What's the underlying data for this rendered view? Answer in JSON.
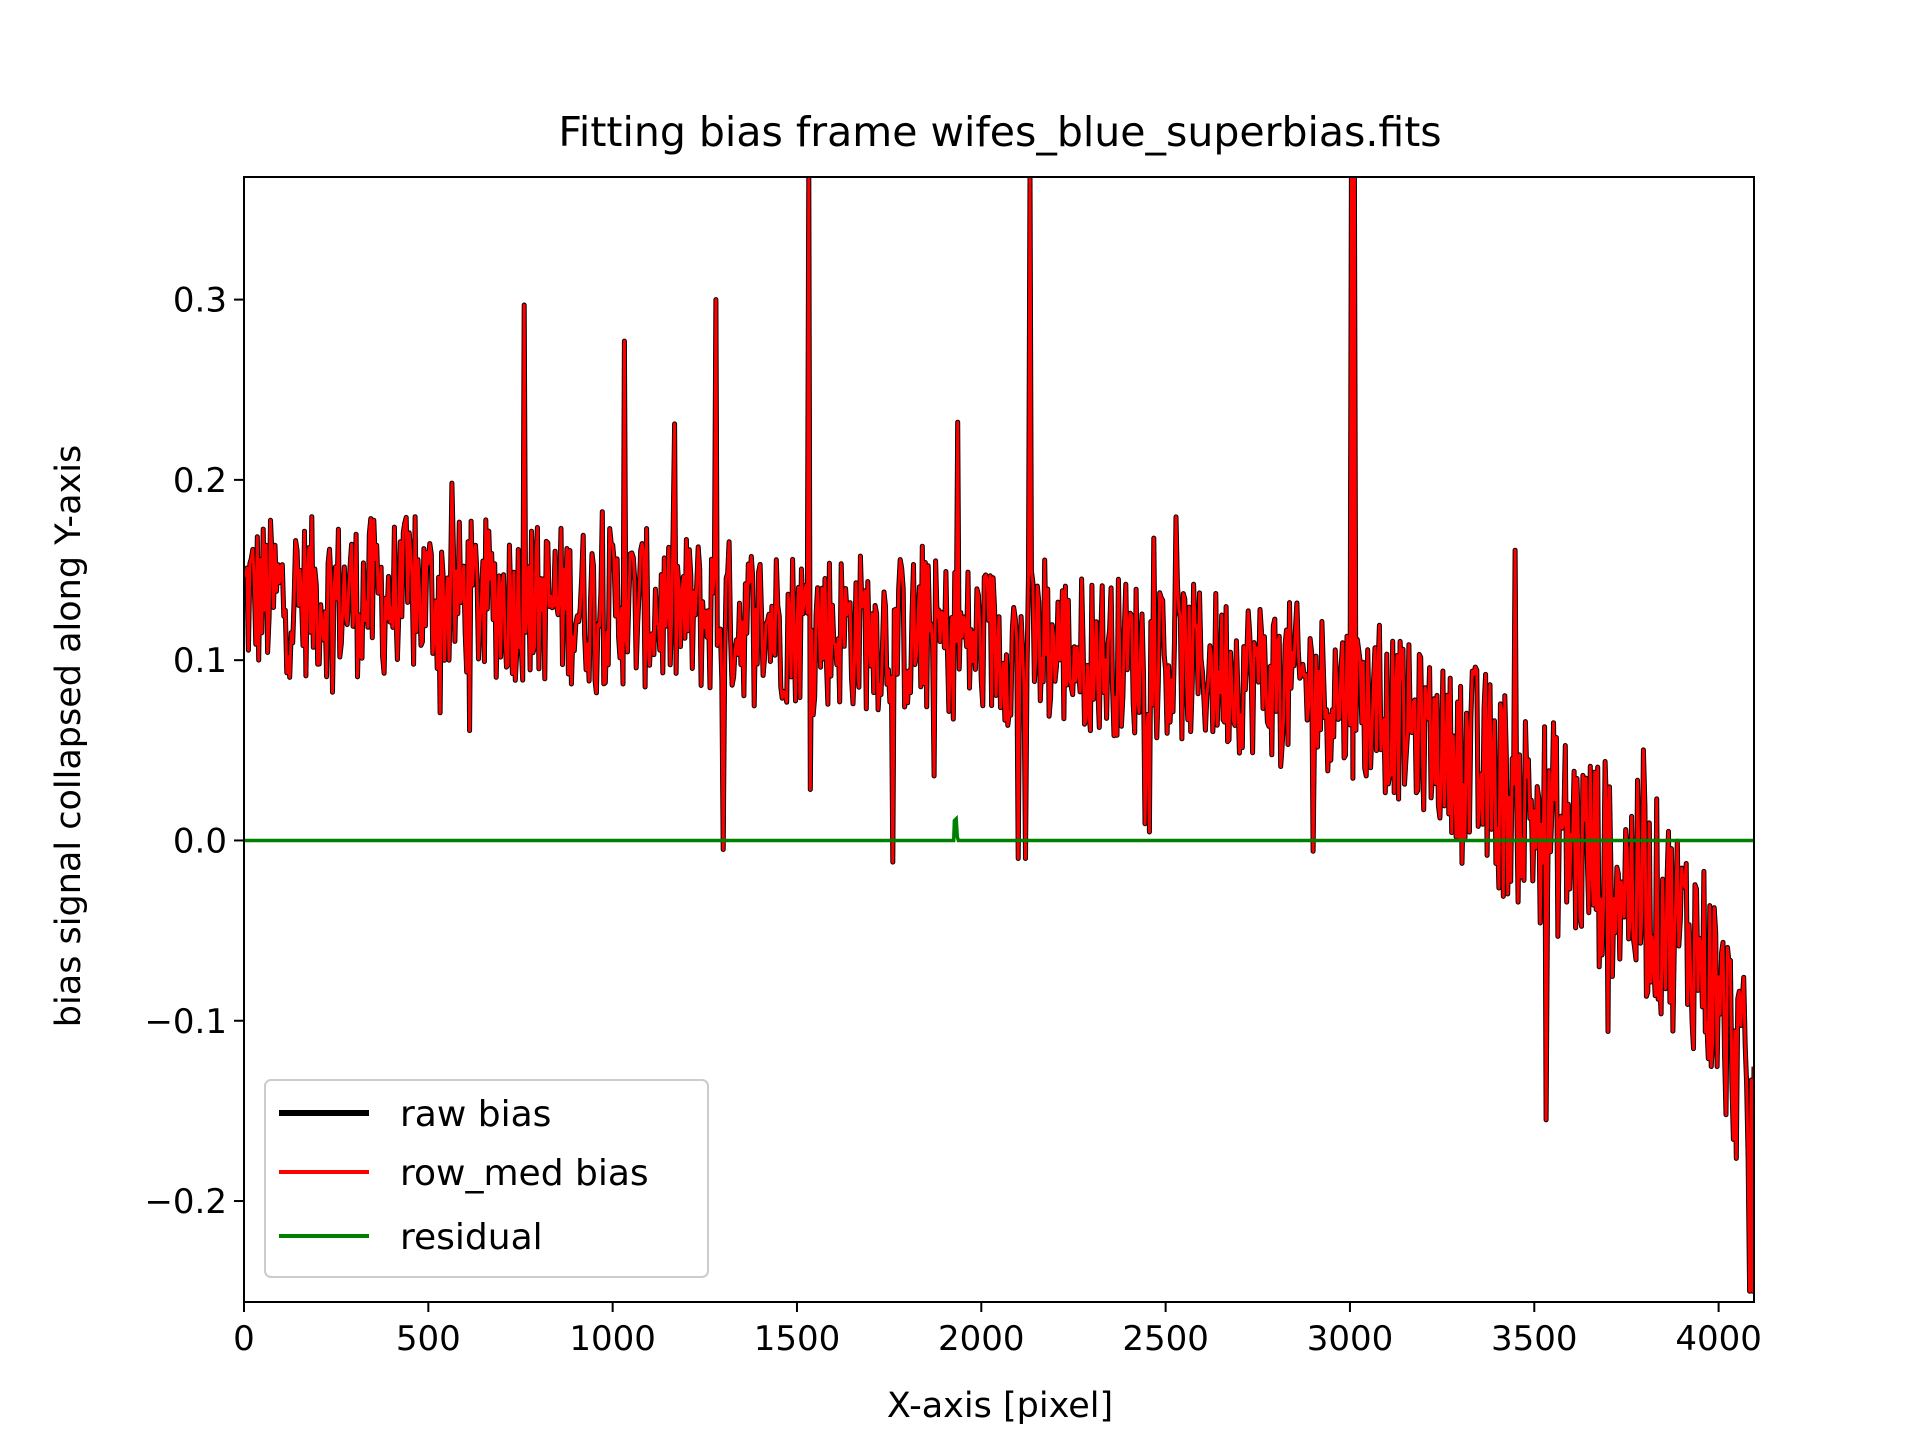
{
  "chart_data": {
    "type": "line",
    "title": "Fitting bias frame wifes_blue_superbias.fits",
    "xlabel": "X-axis [pixel]",
    "ylabel": "bias signal collapsed along Y-axis",
    "xlim": [
      0,
      4096
    ],
    "ylim": [
      -0.256,
      0.368
    ],
    "xticks": [
      0,
      500,
      1000,
      1500,
      2000,
      2500,
      3000,
      3500,
      4000
    ],
    "xtick_labels": [
      "0",
      "500",
      "1000",
      "1500",
      "2000",
      "2500",
      "3000",
      "3500",
      "4000"
    ],
    "yticks": [
      -0.2,
      -0.1,
      0.0,
      0.1,
      0.2,
      0.3
    ],
    "ytick_labels": [
      "−0.2",
      "−0.1",
      "0.0",
      "0.1",
      "0.2",
      "0.3"
    ],
    "grid": false,
    "legend_position": "lower-left",
    "series": [
      {
        "name": "raw bias",
        "color": "#000000",
        "trend": {
          "x": [
            0,
            500,
            1000,
            1500,
            2000,
            2500,
            2800,
            3000,
            3200,
            3400,
            3600,
            3800,
            3950,
            4050,
            4096
          ],
          "y": [
            0.135,
            0.135,
            0.13,
            0.12,
            0.11,
            0.1,
            0.09,
            0.08,
            0.06,
            0.03,
            0.0,
            -0.03,
            -0.06,
            -0.12,
            -0.16
          ]
        },
        "noise_amplitude": 0.045,
        "spikes": [
          {
            "x": 760,
            "y": 0.297
          },
          {
            "x": 1030,
            "y": 0.277
          },
          {
            "x": 1280,
            "y": 0.3
          },
          {
            "x": 1530,
            "y": 0.368
          },
          {
            "x": 1935,
            "y": 0.232
          },
          {
            "x": 2130,
            "y": 0.368
          },
          {
            "x": 3005,
            "y": 0.368
          },
          {
            "x": 3010,
            "y": 0.368
          },
          {
            "x": 1300,
            "y": -0.005
          },
          {
            "x": 1760,
            "y": -0.012
          },
          {
            "x": 2100,
            "y": -0.01
          },
          {
            "x": 2120,
            "y": -0.01
          },
          {
            "x": 3530,
            "y": -0.155
          },
          {
            "x": 4085,
            "y": -0.25
          },
          {
            "x": 4092,
            "y": -0.25
          }
        ]
      },
      {
        "name": "row_med bias",
        "color": "#ff0000",
        "same_as": "raw bias"
      },
      {
        "name": "residual",
        "color": "#008000",
        "x": [
          0,
          1925,
          1927,
          1932,
          1935,
          1938,
          4096
        ],
        "y": [
          0.0,
          0.0,
          0.011,
          0.012,
          0.002,
          0.0,
          0.0
        ]
      }
    ]
  }
}
